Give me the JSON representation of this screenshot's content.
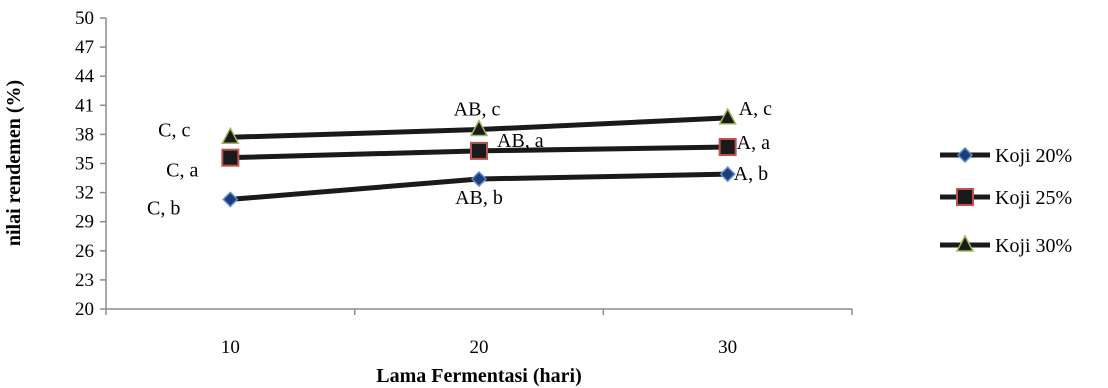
{
  "chart_data": {
    "type": "line",
    "x": [
      10,
      20,
      30
    ],
    "xlabel": "Lama Fermentasi (hari)",
    "ylabel": "nilai rendemen (%)",
    "ylim": [
      20,
      50
    ],
    "yticks": [
      "20",
      "23",
      "26",
      "29",
      "32",
      "35",
      "38",
      "41",
      "44",
      "47",
      "50"
    ],
    "xticks": [
      "10",
      "20",
      "30"
    ],
    "grid": false,
    "legend_position": "right",
    "series": [
      {
        "name": "Koji 20%",
        "values": [
          31.3,
          33.4,
          33.9
        ],
        "marker": "diamond",
        "marker_fill": "#1F3E78",
        "marker_stroke": "#5B8BD0",
        "line_color": "#1a1a1a",
        "labels": [
          "C, b",
          "AB, b",
          "A, b"
        ]
      },
      {
        "name": "Koji 25%",
        "values": [
          35.6,
          36.3,
          36.7
        ],
        "marker": "square",
        "marker_fill": "#1a1a1a",
        "marker_stroke": "#C0504D",
        "line_color": "#1a1a1a",
        "labels": [
          "C, a",
          "AB, a",
          "A, a"
        ]
      },
      {
        "name": "Koji 30%",
        "values": [
          37.7,
          38.5,
          39.7
        ],
        "marker": "triangle",
        "marker_fill": "#1a1a1a",
        "marker_stroke": "#9BBB59",
        "line_color": "#1a1a1a",
        "labels": [
          "C, c",
          "AB, c",
          "A, c"
        ]
      }
    ]
  }
}
